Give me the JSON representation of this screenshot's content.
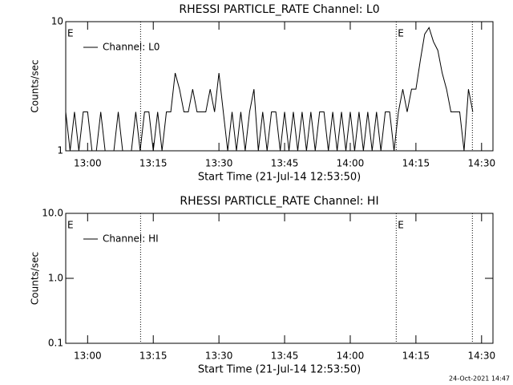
{
  "chart_data": [
    {
      "type": "line",
      "title": "RHESSI PARTICLE_RATE Channel: L0",
      "xlabel": "Start Time (21-Jul-14 12:53:50)",
      "ylabel": "Counts/sec",
      "log_y": true,
      "ylim": [
        1,
        10
      ],
      "yticks": [
        1,
        10
      ],
      "xlim": [
        775,
        872.6
      ],
      "xticks": [
        {
          "value": 780,
          "label": "13:00"
        },
        {
          "value": 795,
          "label": "13:15"
        },
        {
          "value": 810,
          "label": "13:30"
        },
        {
          "value": 825,
          "label": "13:45"
        },
        {
          "value": 840,
          "label": "14:00"
        },
        {
          "value": 855,
          "label": "14:15"
        },
        {
          "value": 870,
          "label": "14:30"
        }
      ],
      "vlines": [
        792.1,
        850.5,
        867.9
      ],
      "annotations": [
        {
          "text": "E",
          "x": 775
        },
        {
          "text": "E",
          "x": 850.5
        }
      ],
      "legend": "upper left",
      "x": [
        775,
        776,
        777,
        778,
        779,
        780,
        781,
        782,
        783,
        784,
        785,
        786,
        787,
        788,
        789,
        790,
        791,
        792,
        793,
        794,
        795,
        796,
        797,
        798,
        799,
        800,
        801,
        802,
        803,
        804,
        805,
        806,
        807,
        808,
        809,
        810,
        811,
        812,
        813,
        814,
        815,
        816,
        817,
        818,
        819,
        820,
        821,
        822,
        823,
        824,
        825,
        826,
        827,
        828,
        829,
        830,
        831,
        832,
        833,
        834,
        835,
        836,
        837,
        838,
        839,
        840,
        841,
        842,
        843,
        844,
        845,
        846,
        847,
        848,
        849,
        850,
        851,
        852,
        853,
        854,
        855,
        856,
        857,
        858,
        859,
        860,
        861,
        862,
        863,
        864,
        865,
        866,
        867,
        868
      ],
      "series": [
        {
          "name": "Channel: L0",
          "color": "#000000",
          "values": [
            2,
            1,
            2,
            1,
            2,
            2,
            1,
            1,
            2,
            1,
            1,
            1,
            2,
            1,
            1,
            1,
            2,
            1,
            2,
            2,
            1,
            2,
            1,
            2,
            2,
            4,
            3,
            2,
            2,
            3,
            2,
            2,
            2,
            3,
            2,
            4,
            2,
            1,
            2,
            1,
            2,
            1,
            2,
            3,
            1,
            2,
            1,
            2,
            2,
            1,
            2,
            1,
            2,
            1,
            2,
            1,
            2,
            1,
            2,
            2,
            1,
            2,
            1,
            2,
            1,
            2,
            1,
            2,
            1,
            2,
            1,
            2,
            1,
            2,
            2,
            1,
            2,
            3,
            2,
            3,
            3,
            5,
            8,
            9,
            7,
            6,
            4,
            3,
            2,
            2,
            2,
            1,
            3,
            2
          ]
        }
      ]
    },
    {
      "type": "line",
      "title": "RHESSI PARTICLE_RATE Channel: HI",
      "xlabel": "Start Time (21-Jul-14 12:53:50)",
      "ylabel": "Counts/sec",
      "log_y": true,
      "ylim": [
        0.1,
        10
      ],
      "yticks": [
        0.1,
        {
          "value": 1,
          "label": "1.0"
        },
        {
          "value": 10,
          "label": "10.0"
        }
      ],
      "xlim": [
        775,
        872.6
      ],
      "xticks": [
        {
          "value": 780,
          "label": "13:00"
        },
        {
          "value": 795,
          "label": "13:15"
        },
        {
          "value": 810,
          "label": "13:30"
        },
        {
          "value": 825,
          "label": "13:45"
        },
        {
          "value": 840,
          "label": "14:00"
        },
        {
          "value": 855,
          "label": "14:15"
        },
        {
          "value": 870,
          "label": "14:30"
        }
      ],
      "vlines": [
        792.1,
        850.5,
        867.9
      ],
      "annotations": [
        {
          "text": "E",
          "x": 775
        },
        {
          "text": "E",
          "x": 850.5
        }
      ],
      "legend": "upper left",
      "x": [],
      "series": [
        {
          "name": "Channel: HI",
          "color": "#000000",
          "values": []
        }
      ]
    }
  ],
  "footer": "24-Oct-2021 14:47"
}
